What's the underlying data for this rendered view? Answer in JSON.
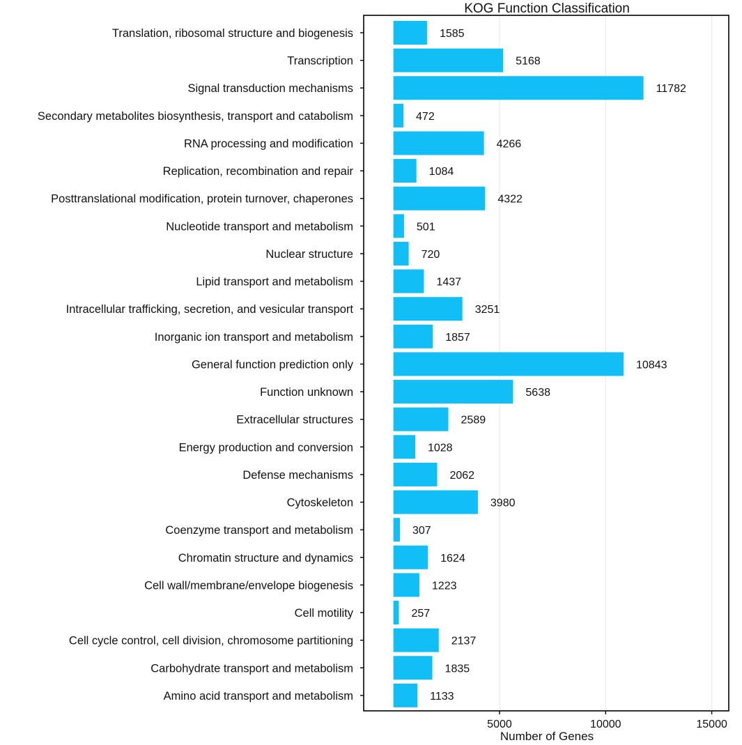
{
  "chart_data": {
    "type": "bar",
    "orientation": "horizontal",
    "title": "KOG Function Classification",
    "xlabel": "Number of Genes",
    "ylabel": "",
    "bar_color": "#11BEF5",
    "grid_color": "#E6E6E6",
    "xlim": [
      -1400,
      15800
    ],
    "xticks": [
      5000,
      10000,
      15000
    ],
    "xtick_labels": [
      "5000",
      "10000",
      "15000"
    ],
    "categories": [
      "Translation, ribosomal structure and biogenesis",
      "Transcription",
      "Signal transduction mechanisms",
      "Secondary metabolites biosynthesis, transport and catabolism",
      "RNA processing and modification",
      "Replication, recombination and repair",
      "Posttranslational modification, protein turnover, chaperones",
      "Nucleotide transport and metabolism",
      "Nuclear structure",
      "Lipid transport and metabolism",
      "Intracellular trafficking, secretion, and vesicular transport",
      "Inorganic ion transport and metabolism",
      "General function prediction only",
      "Function unknown",
      "Extracellular structures",
      "Energy production and conversion",
      "Defense mechanisms",
      "Cytoskeleton",
      "Coenzyme transport and metabolism",
      "Chromatin structure and dynamics",
      "Cell wall/membrane/envelope biogenesis",
      "Cell motility",
      "Cell cycle control, cell division, chromosome partitioning",
      "Carbohydrate transport and metabolism",
      "Amino acid transport and metabolism"
    ],
    "values": [
      1585,
      5168,
      11782,
      472,
      4266,
      1084,
      4322,
      501,
      720,
      1437,
      3251,
      1857,
      10843,
      5638,
      2589,
      1028,
      2062,
      3980,
      307,
      1624,
      1223,
      257,
      2137,
      1835,
      1133
    ],
    "value_labels": [
      "1585",
      "5168",
      "11782",
      "472",
      "4266",
      "1084",
      "4322",
      "501",
      "720",
      "1437",
      "3251",
      "1857",
      "10843",
      "5638",
      "2589",
      "1028",
      "2062",
      "3980",
      "307",
      "1624",
      "1223",
      "257",
      "2137",
      "1835",
      "1133"
    ]
  }
}
